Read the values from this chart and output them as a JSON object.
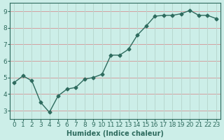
{
  "x": [
    0,
    1,
    2,
    3,
    4,
    5,
    6,
    7,
    8,
    9,
    10,
    11,
    12,
    13,
    14,
    15,
    16,
    17,
    18,
    19,
    20,
    21,
    22,
    23
  ],
  "y": [
    4.7,
    5.1,
    4.8,
    3.5,
    2.9,
    3.9,
    4.3,
    4.4,
    4.9,
    5.0,
    5.2,
    6.35,
    6.35,
    6.7,
    7.55,
    8.1,
    8.7,
    8.75,
    8.75,
    8.85,
    9.05,
    8.75,
    8.75,
    8.55
  ],
  "line_color": "#2e6b5e",
  "marker": "D",
  "marker_size": 2.5,
  "bg_color": "#cceee8",
  "grid_color_h": "#d4a0a0",
  "grid_color_v": "#b8d8d0",
  "axis_color": "#2e6b5e",
  "xlabel": "Humidex (Indice chaleur)",
  "xlim": [
    -0.5,
    23.5
  ],
  "ylim": [
    2.5,
    9.5
  ],
  "yticks": [
    3,
    4,
    5,
    6,
    7,
    8,
    9
  ],
  "xticks": [
    0,
    1,
    2,
    3,
    4,
    5,
    6,
    7,
    8,
    9,
    10,
    11,
    12,
    13,
    14,
    15,
    16,
    17,
    18,
    19,
    20,
    21,
    22,
    23
  ],
  "label_fontsize": 7,
  "tick_fontsize": 6.5
}
